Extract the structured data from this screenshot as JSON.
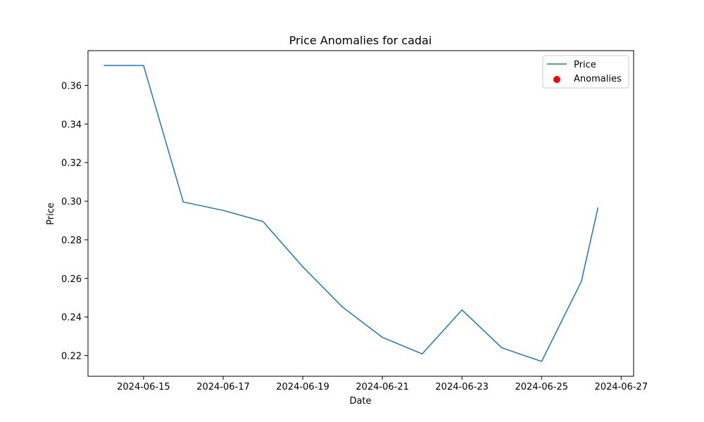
{
  "chart_data": {
    "type": "line",
    "title": "Price Anomalies for cadai",
    "xlabel": "Date",
    "ylabel": "Price",
    "x": [
      "2024-06-14",
      "2024-06-15",
      "2024-06-16",
      "2024-06-17",
      "2024-06-18",
      "2024-06-19",
      "2024-06-20",
      "2024-06-21",
      "2024-06-22",
      "2024-06-23",
      "2024-06-24",
      "2024-06-25",
      "2024-06-26",
      "2024-06-26T10:00"
    ],
    "series": [
      {
        "name": "Price",
        "color": "#1f77b4",
        "values": [
          0.3703,
          0.3703,
          0.2996,
          0.2952,
          0.2895,
          0.266,
          0.2451,
          0.2295,
          0.2209,
          0.2437,
          0.2241,
          0.217,
          0.2584,
          0.2967
        ]
      },
      {
        "name": "Anomalies",
        "kind": "scatter",
        "color": "#ff0000",
        "x": [],
        "values": []
      }
    ],
    "xlim": [
      "2024-06-13T14:30",
      "2024-06-27T07:30"
    ],
    "ylim": [
      0.2093,
      0.378
    ],
    "xticks": [
      "2024-06-15",
      "2024-06-17",
      "2024-06-19",
      "2024-06-21",
      "2024-06-23",
      "2024-06-25",
      "2024-06-27"
    ],
    "yticks": [
      0.22,
      0.24,
      0.26,
      0.28,
      0.3,
      0.32,
      0.34,
      0.36
    ],
    "ytick_labels": [
      "0.22",
      "0.24",
      "0.26",
      "0.28",
      "0.30",
      "0.32",
      "0.34",
      "0.36"
    ],
    "grid": false,
    "legend": "top-right"
  }
}
